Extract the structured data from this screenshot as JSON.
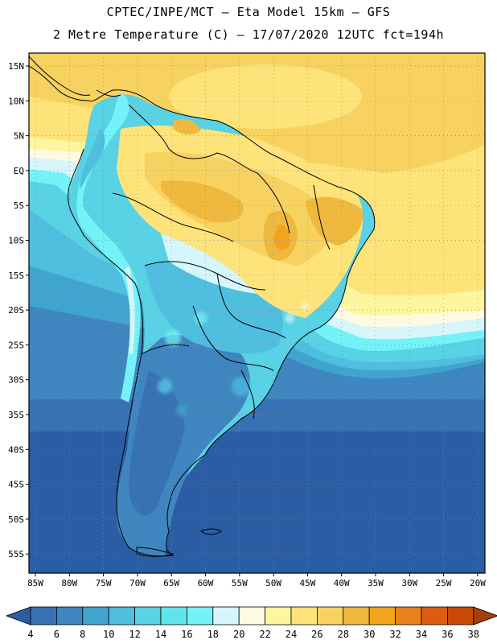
{
  "title": {
    "line1": "CPTEC/INPE/MCT –  Eta Model 15km – GFS",
    "line2": "2 Metre Temperature (C) – 17/07/2020 12UTC fct=194h"
  },
  "axes": {
    "lat_labels": [
      "15N",
      "10N",
      "5N",
      "EQ",
      "5S",
      "10S",
      "15S",
      "20S",
      "25S",
      "30S",
      "35S",
      "40S",
      "45S",
      "50S",
      "55S"
    ],
    "lon_labels": [
      "85W",
      "80W",
      "75W",
      "70W",
      "65W",
      "60W",
      "55W",
      "50W",
      "45W",
      "40W",
      "35W",
      "30W",
      "25W",
      "20W"
    ]
  },
  "colorbar": {
    "labels": [
      "4",
      "6",
      "8",
      "10",
      "12",
      "14",
      "16",
      "18",
      "20",
      "22",
      "24",
      "26",
      "28",
      "30",
      "32",
      "34",
      "36",
      "38"
    ],
    "colors": [
      "#2a5da3",
      "#3872b5",
      "#3f86c0",
      "#41a4cf",
      "#4fbedf",
      "#58d2e4",
      "#61e5ec",
      "#73f3f7",
      "#d6f6fb",
      "#fefae2",
      "#fdf69e",
      "#fde37a",
      "#f8d261",
      "#eeb93e",
      "#f3a41d",
      "#e8821b",
      "#de5c12",
      "#c94a06",
      "#a33f0b"
    ]
  },
  "icons": {
    "left_arrow": "colorbar-under-arrow",
    "right_arrow": "colorbar-over-arrow"
  }
}
